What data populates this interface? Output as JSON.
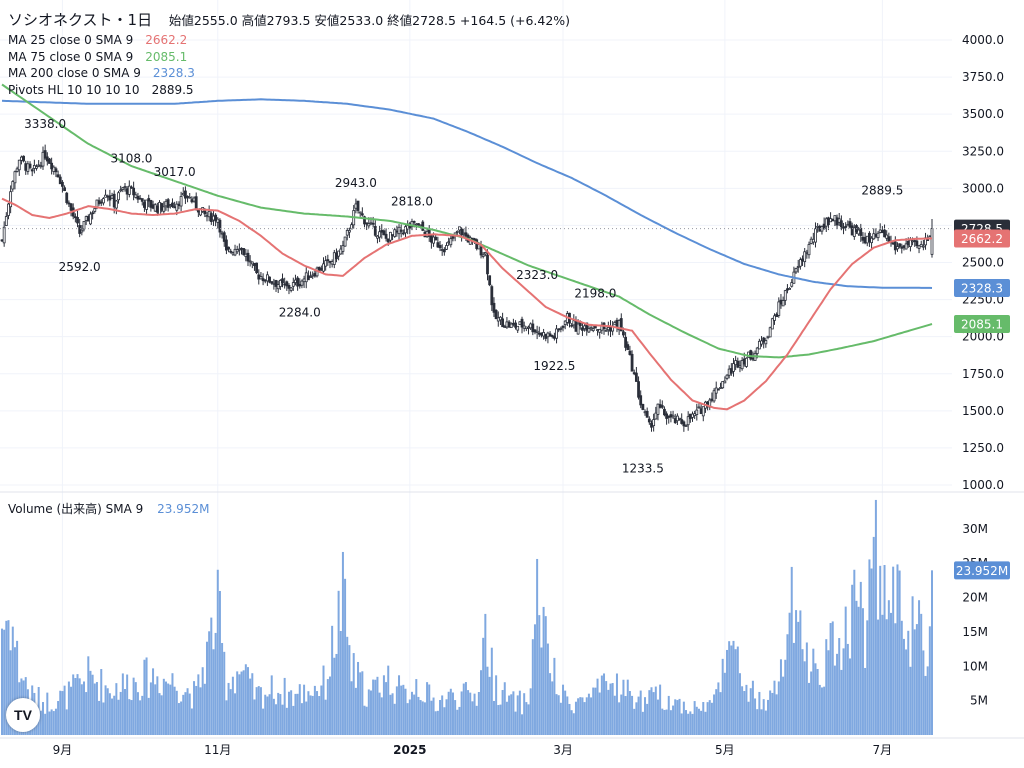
{
  "header": {
    "symbol": "ソシオネクスト・1日",
    "open_label": "始値",
    "open": "2555.0",
    "high_label": "高値",
    "high": "2793.5",
    "low_label": "安値",
    "low": "2533.0",
    "close_label": "終値",
    "close": "2728.5",
    "change": "+164.5 (+6.42%)"
  },
  "indicators": [
    {
      "label": "MA 25 close 0 SMA 9",
      "value": "2662.2",
      "color": "#e57373"
    },
    {
      "label": "MA 75 close 0 SMA 9",
      "value": "2085.1",
      "color": "#66bb6a"
    },
    {
      "label": "MA 200 close 0 SMA 9",
      "value": "2328.3",
      "color": "#5b8fd6"
    },
    {
      "label": "Pivots HL 10 10 10 10",
      "value": "2889.5",
      "color": "#131722"
    }
  ],
  "volume_legend": {
    "label": "Volume (出来高) SMA 9",
    "value": "23.952M",
    "color": "#5b8fd6"
  },
  "colors": {
    "up": "#ffffff",
    "down": "#2a2e39",
    "wick": "#2a2e39",
    "ma25": "#e57373",
    "ma75": "#66bb6a",
    "ma200": "#5b8fd6",
    "volume": "#7fa8e0",
    "grid": "#f0f3fa"
  },
  "logo_icon": "tradingview-logo",
  "logo_text": "TV",
  "chart_data": {
    "type": "candlestick",
    "price_axis": {
      "range": [
        1000,
        4000
      ],
      "ticks": [
        "4000.0",
        "3750.0",
        "3500.0",
        "3250.0",
        "3000.0",
        "2750.0",
        "2500.0",
        "2250.0",
        "2000.0",
        "1750.0",
        "1500.0",
        "1250.0",
        "1000.0"
      ]
    },
    "volume_axis": {
      "range": [
        0,
        32
      ],
      "ticks": [
        "30M",
        "25M",
        "20M",
        "15M",
        "10M",
        "5M"
      ],
      "ticks_values": [
        30,
        25,
        20,
        15,
        10,
        5
      ]
    },
    "x_labels": [
      "9月",
      "11月",
      "2025",
      "3月",
      "5月",
      "7月"
    ],
    "x_label_days": [
      28,
      100,
      189,
      260,
      335,
      408
    ],
    "total_days": 431,
    "last_price": {
      "value": 2728.5,
      "label": "2728.5"
    },
    "ma_badges": [
      {
        "value": 2662.2,
        "label": "2662.2",
        "color": "#e57373"
      },
      {
        "value": 2328.3,
        "label": "2328.3",
        "color": "#5b8fd6"
      },
      {
        "value": 2085.1,
        "label": "2085.1",
        "color": "#66bb6a"
      }
    ],
    "volume_badge": {
      "value": 23.952,
      "label": "23.952M"
    },
    "pivots": [
      {
        "label": "3338.0",
        "d": 20,
        "p": 3338,
        "pos": "above"
      },
      {
        "label": "2592.0",
        "d": 36,
        "p": 2592,
        "pos": "below"
      },
      {
        "label": "3108.0",
        "d": 60,
        "p": 3108,
        "pos": "above"
      },
      {
        "label": "3017.0",
        "d": 80,
        "p": 3017,
        "pos": "above"
      },
      {
        "label": "2284.0",
        "d": 138,
        "p": 2284,
        "pos": "below"
      },
      {
        "label": "2943.0",
        "d": 164,
        "p": 2943,
        "pos": "above"
      },
      {
        "label": "2818.0",
        "d": 190,
        "p": 2818,
        "pos": "above"
      },
      {
        "label": "2323.0",
        "d": 248,
        "p": 2323,
        "pos": "above"
      },
      {
        "label": "1922.5",
        "d": 256,
        "p": 1922.5,
        "pos": "below"
      },
      {
        "label": "2198.0",
        "d": 275,
        "p": 2198,
        "pos": "above"
      },
      {
        "label": "1233.5",
        "d": 297,
        "p": 1233.5,
        "pos": "below"
      },
      {
        "label": "2889.5",
        "d": 408,
        "p": 2889.5,
        "pos": "above"
      }
    ],
    "close_anchors": [
      [
        0,
        2650
      ],
      [
        4,
        3000
      ],
      [
        8,
        3200
      ],
      [
        14,
        3100
      ],
      [
        20,
        3230
      ],
      [
        26,
        3100
      ],
      [
        32,
        2850
      ],
      [
        36,
        2700
      ],
      [
        42,
        2850
      ],
      [
        48,
        2980
      ],
      [
        52,
        2900
      ],
      [
        56,
        3000
      ],
      [
        60,
        2980
      ],
      [
        66,
        2900
      ],
      [
        72,
        2870
      ],
      [
        80,
        2900
      ],
      [
        86,
        2950
      ],
      [
        94,
        2820
      ],
      [
        100,
        2800
      ],
      [
        104,
        2560
      ],
      [
        110,
        2620
      ],
      [
        118,
        2420
      ],
      [
        126,
        2370
      ],
      [
        132,
        2330
      ],
      [
        138,
        2370
      ],
      [
        146,
        2450
      ],
      [
        152,
        2500
      ],
      [
        158,
        2600
      ],
      [
        164,
        2870
      ],
      [
        170,
        2750
      ],
      [
        178,
        2660
      ],
      [
        186,
        2720
      ],
      [
        192,
        2760
      ],
      [
        200,
        2640
      ],
      [
        206,
        2600
      ],
      [
        212,
        2720
      ],
      [
        218,
        2630
      ],
      [
        224,
        2560
      ],
      [
        228,
        2130
      ],
      [
        236,
        2070
      ],
      [
        244,
        2080
      ],
      [
        250,
        2020
      ],
      [
        256,
        2000
      ],
      [
        262,
        2130
      ],
      [
        266,
        2060
      ],
      [
        272,
        2080
      ],
      [
        280,
        2050
      ],
      [
        286,
        2090
      ],
      [
        292,
        1800
      ],
      [
        296,
        1550
      ],
      [
        300,
        1390
      ],
      [
        304,
        1520
      ],
      [
        310,
        1440
      ],
      [
        316,
        1420
      ],
      [
        322,
        1480
      ],
      [
        328,
        1580
      ],
      [
        334,
        1700
      ],
      [
        340,
        1820
      ],
      [
        348,
        1880
      ],
      [
        354,
        2000
      ],
      [
        360,
        2200
      ],
      [
        366,
        2380
      ],
      [
        372,
        2560
      ],
      [
        378,
        2720
      ],
      [
        384,
        2800
      ],
      [
        390,
        2760
      ],
      [
        396,
        2700
      ],
      [
        402,
        2640
      ],
      [
        408,
        2700
      ],
      [
        414,
        2600
      ],
      [
        420,
        2620
      ],
      [
        426,
        2600
      ],
      [
        431,
        2728.5
      ]
    ],
    "ma25_anchors": [
      [
        0,
        2930
      ],
      [
        6,
        2890
      ],
      [
        14,
        2820
      ],
      [
        22,
        2800
      ],
      [
        30,
        2830
      ],
      [
        40,
        2880
      ],
      [
        50,
        2860
      ],
      [
        60,
        2830
      ],
      [
        70,
        2820
      ],
      [
        80,
        2830
      ],
      [
        90,
        2860
      ],
      [
        100,
        2850
      ],
      [
        110,
        2780
      ],
      [
        120,
        2680
      ],
      [
        130,
        2560
      ],
      [
        140,
        2480
      ],
      [
        150,
        2420
      ],
      [
        158,
        2410
      ],
      [
        168,
        2530
      ],
      [
        178,
        2620
      ],
      [
        190,
        2680
      ],
      [
        200,
        2690
      ],
      [
        212,
        2680
      ],
      [
        222,
        2620
      ],
      [
        232,
        2460
      ],
      [
        242,
        2330
      ],
      [
        252,
        2200
      ],
      [
        262,
        2130
      ],
      [
        272,
        2080
      ],
      [
        282,
        2070
      ],
      [
        292,
        2040
      ],
      [
        300,
        1890
      ],
      [
        310,
        1710
      ],
      [
        320,
        1570
      ],
      [
        330,
        1520
      ],
      [
        336,
        1510
      ],
      [
        344,
        1570
      ],
      [
        354,
        1700
      ],
      [
        364,
        1880
      ],
      [
        374,
        2100
      ],
      [
        384,
        2320
      ],
      [
        394,
        2490
      ],
      [
        404,
        2600
      ],
      [
        414,
        2650
      ],
      [
        424,
        2660
      ],
      [
        431,
        2662.2
      ]
    ],
    "ma75_anchors": [
      [
        0,
        3700
      ],
      [
        20,
        3500
      ],
      [
        40,
        3300
      ],
      [
        60,
        3150
      ],
      [
        80,
        3050
      ],
      [
        100,
        2950
      ],
      [
        120,
        2870
      ],
      [
        140,
        2830
      ],
      [
        160,
        2810
      ],
      [
        180,
        2780
      ],
      [
        200,
        2720
      ],
      [
        216,
        2660
      ],
      [
        230,
        2570
      ],
      [
        244,
        2480
      ],
      [
        256,
        2420
      ],
      [
        270,
        2350
      ],
      [
        286,
        2270
      ],
      [
        300,
        2150
      ],
      [
        316,
        2030
      ],
      [
        332,
        1920
      ],
      [
        346,
        1870
      ],
      [
        360,
        1860
      ],
      [
        374,
        1880
      ],
      [
        388,
        1920
      ],
      [
        404,
        1970
      ],
      [
        418,
        2030
      ],
      [
        431,
        2085.1
      ]
    ],
    "ma200_anchors": [
      [
        0,
        3590
      ],
      [
        20,
        3580
      ],
      [
        40,
        3570
      ],
      [
        60,
        3570
      ],
      [
        80,
        3570
      ],
      [
        100,
        3590
      ],
      [
        120,
        3600
      ],
      [
        140,
        3590
      ],
      [
        160,
        3570
      ],
      [
        180,
        3530
      ],
      [
        200,
        3470
      ],
      [
        216,
        3380
      ],
      [
        232,
        3280
      ],
      [
        248,
        3170
      ],
      [
        264,
        3070
      ],
      [
        280,
        2950
      ],
      [
        296,
        2820
      ],
      [
        312,
        2700
      ],
      [
        328,
        2590
      ],
      [
        344,
        2490
      ],
      [
        360,
        2420
      ],
      [
        376,
        2370
      ],
      [
        392,
        2340
      ],
      [
        408,
        2330
      ],
      [
        420,
        2330
      ],
      [
        431,
        2328.3
      ]
    ],
    "volume_anchors": [
      [
        0,
        17
      ],
      [
        4,
        18
      ],
      [
        8,
        10
      ],
      [
        14,
        6
      ],
      [
        20,
        5
      ],
      [
        30,
        6
      ],
      [
        40,
        9
      ],
      [
        50,
        7
      ],
      [
        60,
        8
      ],
      [
        70,
        9
      ],
      [
        80,
        8
      ],
      [
        90,
        6
      ],
      [
        100,
        19
      ],
      [
        104,
        8
      ],
      [
        110,
        10
      ],
      [
        118,
        6
      ],
      [
        126,
        7
      ],
      [
        136,
        6
      ],
      [
        150,
        8
      ],
      [
        158,
        21
      ],
      [
        162,
        10
      ],
      [
        170,
        6
      ],
      [
        178,
        9
      ],
      [
        186,
        6
      ],
      [
        192,
        8
      ],
      [
        200,
        5
      ],
      [
        210,
        6
      ],
      [
        220,
        6
      ],
      [
        224,
        16
      ],
      [
        228,
        8
      ],
      [
        236,
        5
      ],
      [
        244,
        5
      ],
      [
        248,
        22
      ],
      [
        252,
        14
      ],
      [
        258,
        6
      ],
      [
        266,
        5
      ],
      [
        274,
        6
      ],
      [
        284,
        8
      ],
      [
        292,
        6
      ],
      [
        298,
        5
      ],
      [
        304,
        6
      ],
      [
        312,
        5
      ],
      [
        322,
        4
      ],
      [
        330,
        5
      ],
      [
        336,
        15
      ],
      [
        340,
        11
      ],
      [
        346,
        7
      ],
      [
        354,
        4
      ],
      [
        360,
        8
      ],
      [
        366,
        19
      ],
      [
        372,
        12
      ],
      [
        378,
        10
      ],
      [
        384,
        13
      ],
      [
        390,
        15
      ],
      [
        396,
        22
      ],
      [
        400,
        16
      ],
      [
        404,
        28
      ],
      [
        408,
        24
      ],
      [
        412,
        18
      ],
      [
        416,
        25
      ],
      [
        420,
        15
      ],
      [
        424,
        17
      ],
      [
        428,
        11
      ],
      [
        431,
        24
      ]
    ]
  }
}
